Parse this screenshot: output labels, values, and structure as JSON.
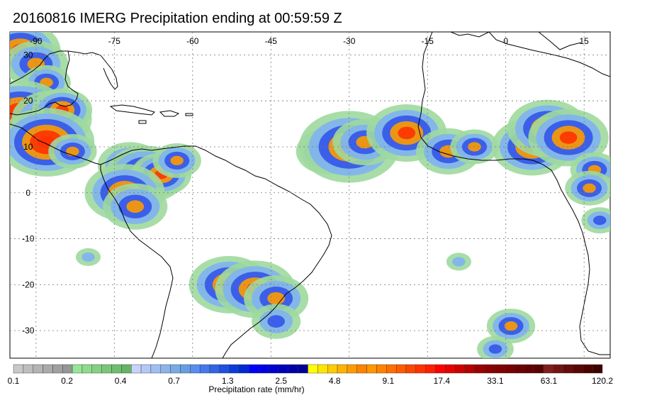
{
  "title": "20160816 IMERG Precipitation ending at 00:59:59 Z",
  "map": {
    "lon_range": [
      -95,
      20
    ],
    "lat_range": [
      -36,
      35
    ],
    "lon_ticks": [
      "-90",
      "-75",
      "-60",
      "-45",
      "-30",
      "-15",
      "0",
      "15"
    ],
    "lon_tick_values": [
      -90,
      -75,
      -60,
      -45,
      -30,
      -15,
      0,
      15
    ],
    "lat_ticks": [
      "30",
      "20",
      "10",
      "0",
      "-10",
      "-20",
      "-30"
    ],
    "lat_tick_values": [
      30,
      20,
      10,
      0,
      -10,
      -20,
      -30
    ],
    "gridlines": true,
    "coastline_color": "#000000"
  },
  "colorbar": {
    "label": "Precipitation rate (mm/hr)",
    "tick_labels": [
      "0.1",
      "0.2",
      "0.4",
      "0.7",
      "1.3",
      "2.5",
      "4.8",
      "9.1",
      "17.4",
      "33.1",
      "63.1",
      "120.2"
    ],
    "colors": [
      "#c8c8c8",
      "#bebebe",
      "#b4b4b4",
      "#aaaaaa",
      "#a0a0a0",
      "#969696",
      "#96e696",
      "#8cdc8c",
      "#82d282",
      "#78c878",
      "#6ebe6e",
      "#64b464",
      "#c8d2fa",
      "#b4c8f5",
      "#a0bef0",
      "#8cb4eb",
      "#78aae6",
      "#64a0e1",
      "#5a8cf0",
      "#4678eb",
      "#3264e6",
      "#1e50e1",
      "#0a3cdc",
      "#0028d2",
      "#0000ff",
      "#0000e6",
      "#0000d2",
      "#0000be",
      "#0000aa",
      "#000096",
      "#ffff00",
      "#ffe600",
      "#ffcd00",
      "#ffb400",
      "#ff9b00",
      "#ff8200",
      "#ff9600",
      "#ff8200",
      "#ff6e00",
      "#ff5a00",
      "#ff4600",
      "#ff3200",
      "#ff1e00",
      "#ff0000",
      "#e60000",
      "#cd0000",
      "#b40000",
      "#9b0000",
      "#8c0000",
      "#820000",
      "#780000",
      "#6e0000",
      "#640000",
      "#5a0000",
      "#801e1e",
      "#731414",
      "#660a0a",
      "#5a0505",
      "#4d0000",
      "#400000"
    ]
  },
  "precip_cells": [
    {
      "lon": -93,
      "lat": 31,
      "level": 4,
      "r": 3
    },
    {
      "lon": -90,
      "lat": 28,
      "level": 3,
      "r": 3
    },
    {
      "lon": -88,
      "lat": 24,
      "level": 3,
      "r": 2
    },
    {
      "lon": -93,
      "lat": 17,
      "level": 5,
      "r": 3
    },
    {
      "lon": -87,
      "lat": 16,
      "level": 4,
      "r": 3
    },
    {
      "lon": -85,
      "lat": 18,
      "level": 4,
      "r": 2
    },
    {
      "lon": -88,
      "lat": 11,
      "level": 5,
      "r": 3
    },
    {
      "lon": -83,
      "lat": 9,
      "level": 3,
      "r": 2
    },
    {
      "lon": -72,
      "lat": 6,
      "level": 3,
      "r": 3
    },
    {
      "lon": -69,
      "lat": 4,
      "level": 4,
      "r": 3
    },
    {
      "lon": -66,
      "lat": 4,
      "level": 4,
      "r": 2
    },
    {
      "lon": -73,
      "lat": 0,
      "level": 4,
      "r": 3
    },
    {
      "lon": -71,
      "lat": -3,
      "level": 3,
      "r": 3
    },
    {
      "lon": -63,
      "lat": 7,
      "level": 3,
      "r": 2
    },
    {
      "lon": -34,
      "lat": 9,
      "level": 3,
      "r": 3
    },
    {
      "lon": -30,
      "lat": 10,
      "level": 4,
      "r": 4
    },
    {
      "lon": -27,
      "lat": 11,
      "level": 3,
      "r": 3
    },
    {
      "lon": -19,
      "lat": 13,
      "level": 4,
      "r": 3
    },
    {
      "lon": -11,
      "lat": 9,
      "level": 3,
      "r": 3
    },
    {
      "lon": -6,
      "lat": 10,
      "level": 3,
      "r": 2
    },
    {
      "lon": 5,
      "lat": 10,
      "level": 4,
      "r": 3
    },
    {
      "lon": 8,
      "lat": 14,
      "level": 4,
      "r": 3
    },
    {
      "lon": 12,
      "lat": 12,
      "level": 4,
      "r": 3
    },
    {
      "lon": 17,
      "lat": 5,
      "level": 3,
      "r": 2
    },
    {
      "lon": 16,
      "lat": 1,
      "level": 3,
      "r": 2
    },
    {
      "lon": 18,
      "lat": -6,
      "level": 2,
      "r": 2
    },
    {
      "lon": -53,
      "lat": -20,
      "level": 4,
      "r": 3
    },
    {
      "lon": -48,
      "lat": -21,
      "level": 4,
      "r": 3
    },
    {
      "lon": -44,
      "lat": -23,
      "level": 3,
      "r": 3
    },
    {
      "lon": -44,
      "lat": -28,
      "level": 2,
      "r": 3
    },
    {
      "lon": 1,
      "lat": -29,
      "level": 3,
      "r": 2
    },
    {
      "lon": -2,
      "lat": -34,
      "level": 2,
      "r": 2
    },
    {
      "lon": -80,
      "lat": -14,
      "level": 1,
      "r": 2
    },
    {
      "lon": -9,
      "lat": -15,
      "level": 1,
      "r": 2
    }
  ]
}
